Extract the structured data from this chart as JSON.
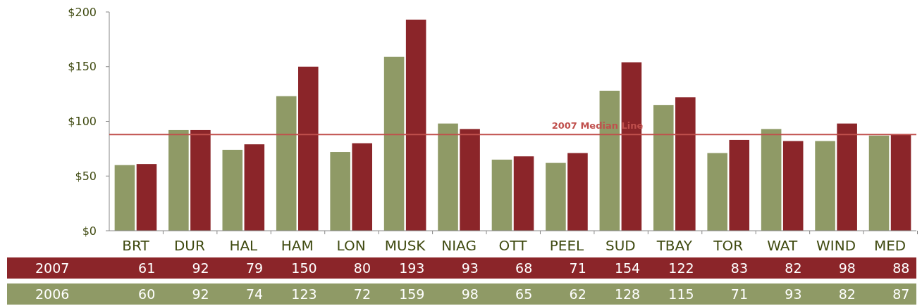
{
  "chart_data": {
    "type": "bar",
    "categories": [
      "BRT",
      "DUR",
      "HAL",
      "HAM",
      "LON",
      "MUSK",
      "NIAG",
      "OTT",
      "PEEL",
      "SUD",
      "TBAY",
      "TOR",
      "WAT",
      "WIND",
      "MED"
    ],
    "series": [
      {
        "name": "2006",
        "color": "#8f9a66",
        "values": [
          60,
          92,
          74,
          123,
          72,
          159,
          98,
          65,
          62,
          128,
          115,
          71,
          93,
          82,
          87
        ]
      },
      {
        "name": "2007",
        "color": "#8b2529",
        "values": [
          61,
          92,
          79,
          150,
          80,
          193,
          93,
          68,
          71,
          154,
          122,
          83,
          82,
          98,
          88
        ]
      }
    ],
    "ylim": [
      0,
      200
    ],
    "yticks": [
      {
        "value": 0,
        "label": "$0"
      },
      {
        "value": 50,
        "label": "$50"
      },
      {
        "value": 100,
        "label": "$100"
      },
      {
        "value": 150,
        "label": "$150"
      },
      {
        "value": 200,
        "label": "$200"
      }
    ],
    "ref_lines": [
      {
        "axis": "y",
        "value": 88,
        "label": "2007 Median Line",
        "color": "#c0504d"
      }
    ],
    "data_labels": true,
    "grid": false
  }
}
